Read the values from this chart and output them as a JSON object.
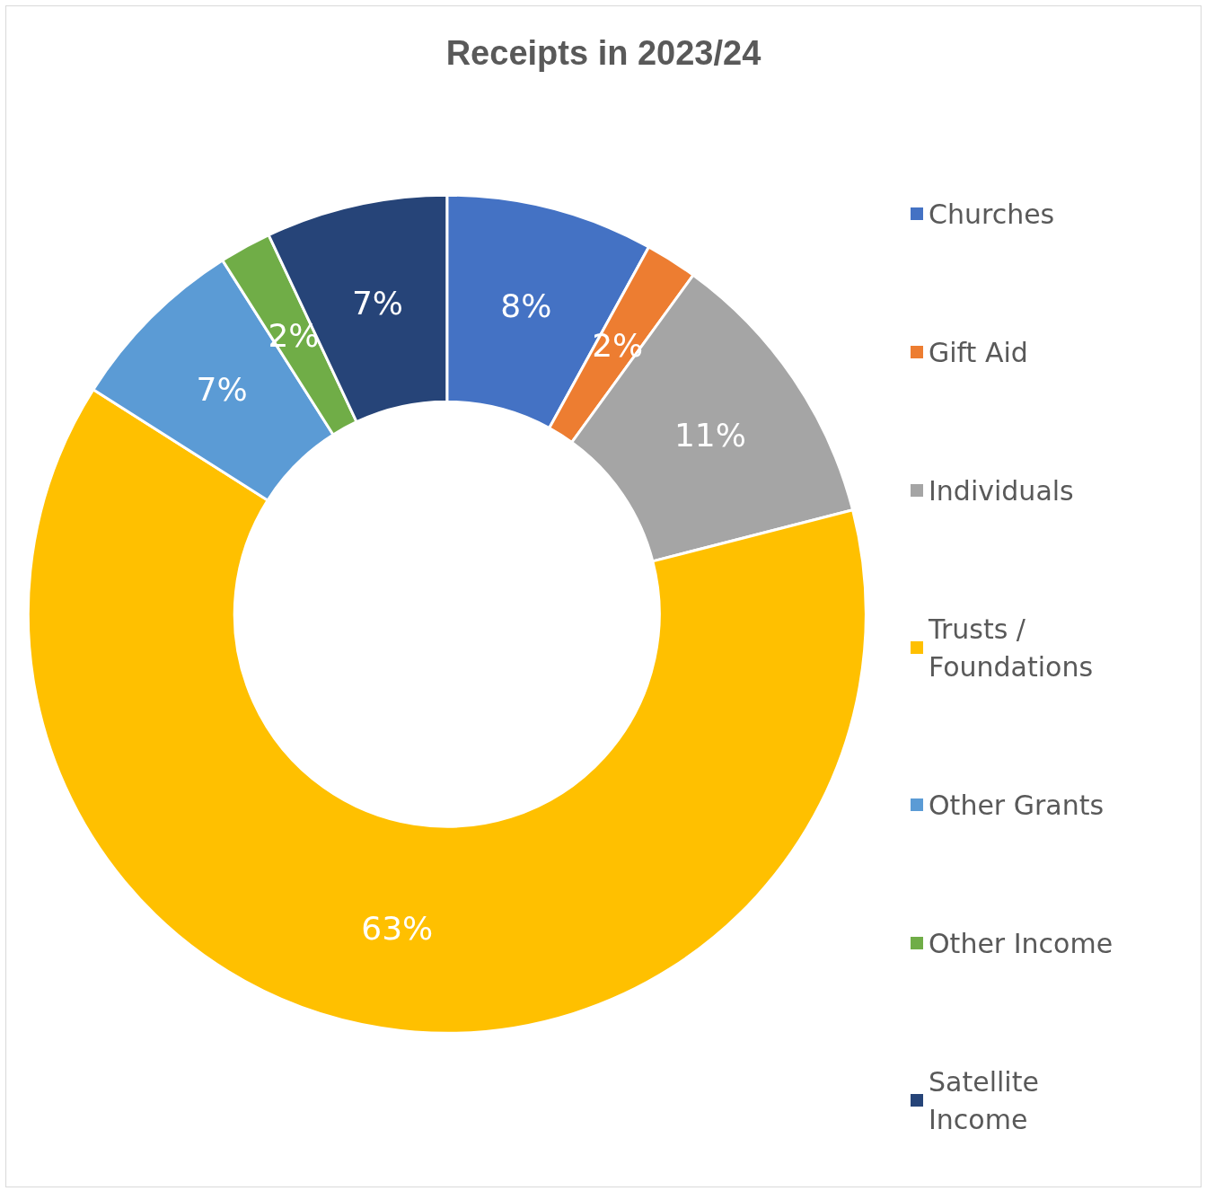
{
  "chart_data": {
    "type": "donut",
    "title": "Receipts in 2023/24",
    "categories": [
      "Churches",
      "Gift Aid",
      "Individuals",
      "Trusts / Foundations",
      "Other Grants",
      "Other Income",
      "Satellite Income"
    ],
    "values": [
      8,
      2,
      11,
      63,
      7,
      2,
      7
    ],
    "colors": [
      "#4472c4",
      "#ed7d31",
      "#a5a5a5",
      "#ffc000",
      "#5b9bd5",
      "#70ad47",
      "#264478"
    ],
    "value_labels": [
      "8%",
      "2%",
      "11%",
      "63%",
      "7%",
      "2%",
      "7%"
    ],
    "legend": "right"
  }
}
